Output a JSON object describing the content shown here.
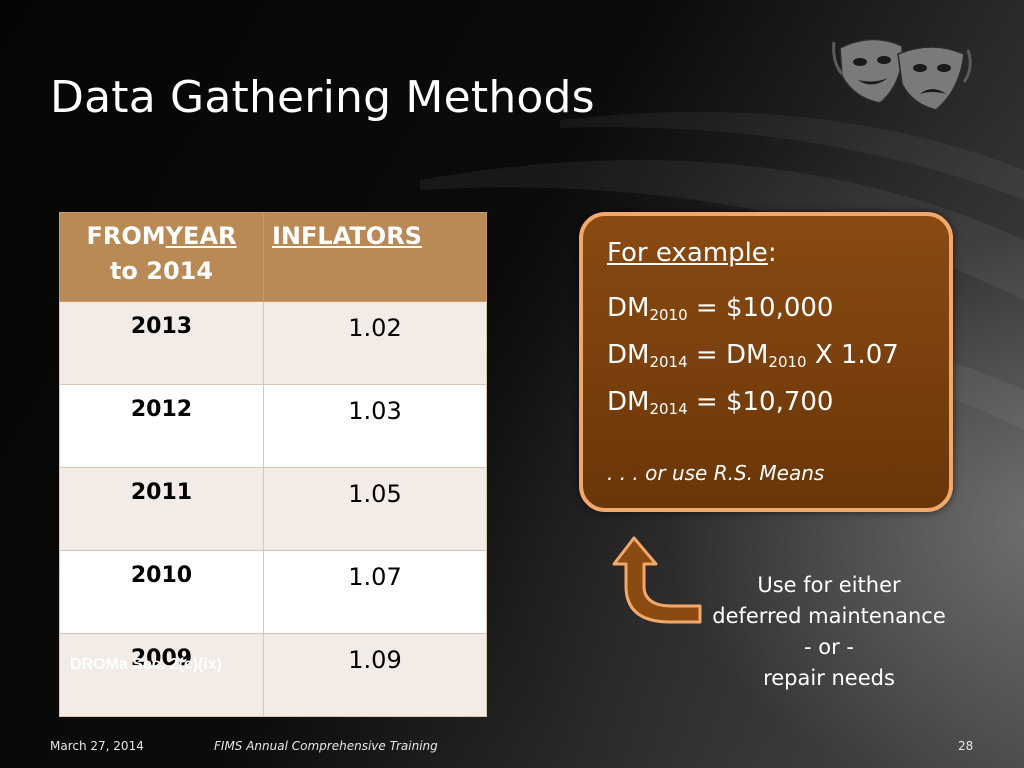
{
  "slide": {
    "title": "Data Gathering Methods"
  },
  "table": {
    "header": {
      "col1_word1": "FROM",
      "col1_word2": "YEAR",
      "col1_line2": "to 2014",
      "col2": "INFLATORS"
    },
    "rows": [
      {
        "year": "2013",
        "inflator": "1.02"
      },
      {
        "year": "2012",
        "inflator": "1.03"
      },
      {
        "year": "2011",
        "inflator": "1.05"
      },
      {
        "year": "2010",
        "inflator": "1.07"
      },
      {
        "year": "2009",
        "inflator": "1.09"
      }
    ],
    "source": "DROMa Sec. 2(c)(ix)"
  },
  "example": {
    "heading": "For example",
    "heading_suffix": ":",
    "dm": "DM",
    "line1": {
      "sub": "2010",
      "rest": " = $10,000"
    },
    "line2": {
      "sub": "2014",
      "mid": " = DM",
      "sub2": "2010",
      "rest": " X 1.07"
    },
    "line3": {
      "sub": "2014",
      "rest": " = $10,700"
    },
    "note": ". . . or use R.S. Means"
  },
  "usage": {
    "line1": "Use for either",
    "line2": "deferred maintenance",
    "line3": "- or -",
    "line4": "repair needs"
  },
  "footer": {
    "date": "March 27, 2014",
    "title": "FIMS Annual Comprehensive Training",
    "page": "28"
  },
  "colors": {
    "header_fill": "#b98a55",
    "box_fill": "#7a4010",
    "box_border": "#f3a86b",
    "arrow_fill": "#8a4a12"
  },
  "icons": {
    "logo": "theater-masks-icon",
    "arrow": "curved-up-arrow-icon"
  }
}
